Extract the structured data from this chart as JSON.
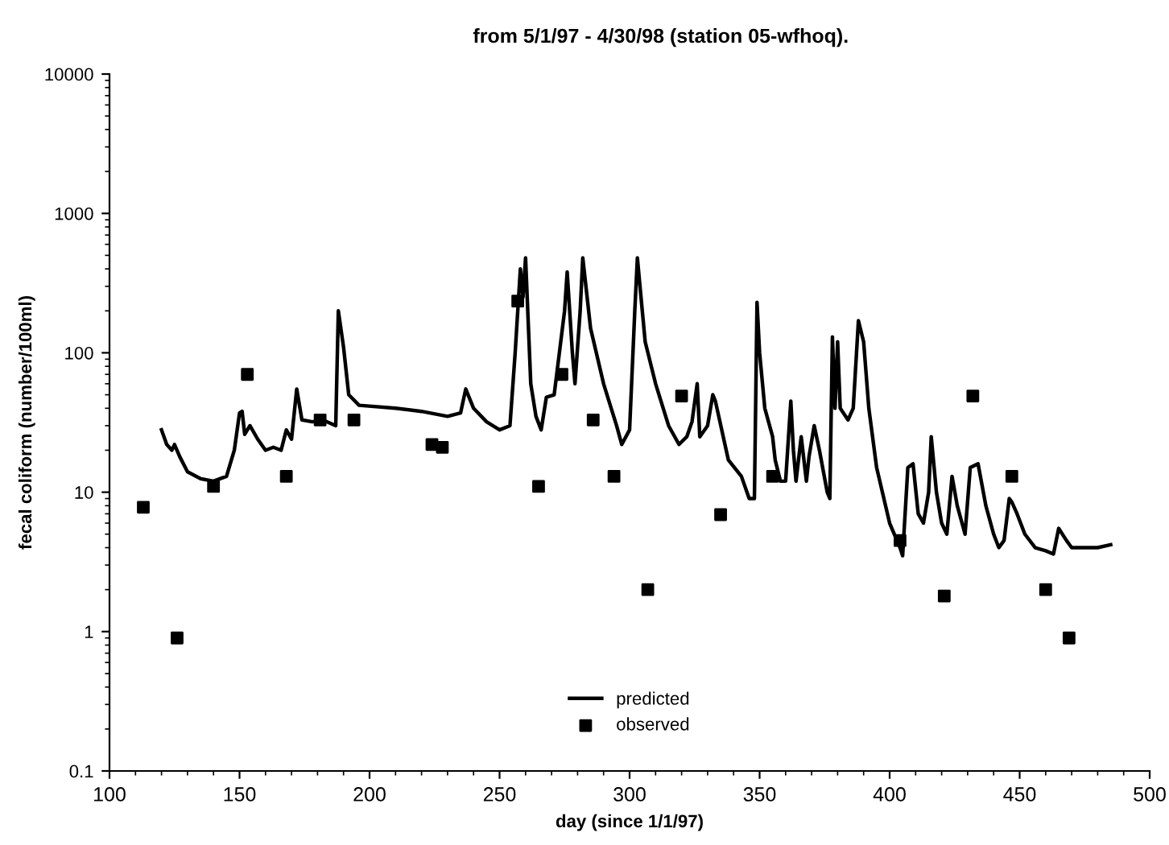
{
  "chart_data": {
    "type": "line",
    "title": "from 5/1/97 - 4/30/98 (station 05-wfhoq).",
    "xlabel": "day (since 1/1/97)",
    "ylabel": "fecal coliform (number/100ml)",
    "xlim": [
      100,
      500
    ],
    "xticks": [
      100,
      150,
      200,
      250,
      300,
      350,
      400,
      450,
      500
    ],
    "ylim": [
      0.1,
      10000
    ],
    "yticks": [
      0.1,
      1,
      10,
      100,
      1000,
      10000
    ],
    "log": true,
    "grid": false,
    "legend": "bottom",
    "series": [
      {
        "name": "predicted",
        "color": "#000000",
        "marker": "none",
        "line_style": "solid",
        "x": [
          120,
          122,
          124,
          125,
          127,
          130,
          135,
          140,
          145,
          148,
          150,
          151,
          152,
          154,
          157,
          160,
          163,
          166,
          168,
          170,
          172,
          174,
          178,
          182,
          187,
          188,
          190,
          192,
          196,
          210,
          220,
          230,
          235,
          237,
          240,
          245,
          250,
          254,
          256,
          258,
          259,
          260,
          262,
          264,
          266,
          268,
          271,
          273,
          275,
          276,
          278,
          279,
          281,
          282,
          285,
          290,
          295,
          297,
          300,
          302,
          303,
          304,
          306,
          310,
          315,
          319,
          322,
          324,
          326,
          327,
          330,
          332,
          333,
          338,
          343,
          346,
          348,
          349,
          350,
          352,
          355,
          356,
          358,
          360,
          362,
          363,
          364,
          366,
          368,
          369,
          371,
          373,
          376,
          377,
          378,
          379,
          380,
          381,
          384,
          386,
          388,
          390,
          392,
          395,
          400,
          404,
          405,
          407,
          409,
          411,
          413,
          415,
          416,
          418,
          420,
          422,
          424,
          426,
          429,
          431,
          434,
          437,
          440,
          442,
          444,
          446,
          447,
          449,
          452,
          456,
          460,
          463,
          465,
          468,
          470,
          480,
          485
        ],
        "values": [
          28,
          22,
          20,
          22,
          18,
          14,
          12.5,
          12,
          13,
          20,
          37,
          38,
          26,
          30,
          24,
          20,
          21,
          20,
          28,
          24,
          55,
          33,
          32,
          33,
          30,
          200,
          110,
          50,
          42,
          40,
          38,
          35,
          37,
          55,
          40,
          32,
          28,
          30,
          100,
          400,
          250,
          480,
          60,
          35,
          28,
          48,
          50,
          100,
          200,
          380,
          100,
          60,
          200,
          480,
          150,
          60,
          30,
          22,
          28,
          200,
          480,
          300,
          120,
          60,
          30,
          22,
          25,
          32,
          60,
          25,
          30,
          50,
          45,
          17,
          13,
          9,
          9,
          230,
          100,
          40,
          25,
          17,
          12,
          12,
          45,
          20,
          12,
          25,
          12,
          18,
          30,
          20,
          10,
          9,
          130,
          40,
          120,
          40,
          33,
          40,
          170,
          120,
          40,
          15,
          6,
          4,
          3.5,
          15,
          16,
          7,
          6,
          10,
          25,
          10,
          6,
          5,
          13,
          8,
          5,
          15,
          16,
          8,
          5,
          4,
          4.5,
          9,
          8.5,
          7,
          5,
          4,
          3.8,
          3.6,
          5.5,
          4.5,
          4,
          4,
          4.2
        ]
      },
      {
        "name": "observed",
        "type": "scatter",
        "color": "#000000",
        "marker": "square",
        "x": [
          113,
          126,
          140,
          153,
          168,
          181,
          194,
          224,
          228,
          257,
          265,
          274,
          286,
          294,
          307,
          320,
          335,
          355,
          404,
          421,
          432,
          447,
          460,
          469
        ],
        "values": [
          7.8,
          0.9,
          11,
          70,
          13,
          33,
          33,
          22,
          21,
          235,
          11,
          70,
          33,
          13,
          2,
          49,
          6.9,
          13,
          4.5,
          1.8,
          49,
          13,
          2,
          0.9
        ]
      }
    ]
  }
}
